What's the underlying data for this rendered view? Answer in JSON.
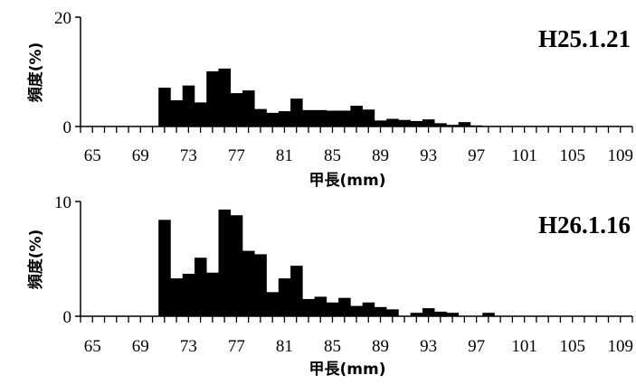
{
  "chart_data": [
    {
      "type": "bar",
      "title": "H25.1.21",
      "xlabel": "甲長(mm)",
      "ylabel": "頻度(%)",
      "xlim": [
        64,
        110
      ],
      "ylim": [
        0,
        20
      ],
      "yticks": [
        0,
        20
      ],
      "xticks": [
        65,
        69,
        73,
        77,
        81,
        85,
        89,
        93,
        97,
        101,
        105,
        109
      ],
      "grid": false,
      "x": [
        71,
        72,
        73,
        74,
        75,
        76,
        77,
        78,
        79,
        80,
        81,
        82,
        83,
        84,
        85,
        86,
        87,
        88,
        89,
        90,
        91,
        92,
        93,
        94,
        95,
        96,
        97,
        98,
        99,
        100,
        101,
        102,
        103,
        104,
        105,
        106,
        107,
        108,
        109
      ],
      "values": [
        7.1,
        4.8,
        7.5,
        4.4,
        10.1,
        10.6,
        6.1,
        6.6,
        3.2,
        2.5,
        2.8,
        5.1,
        3.0,
        3.0,
        2.9,
        2.9,
        3.8,
        3.1,
        1.1,
        1.4,
        1.2,
        1.0,
        1.3,
        0.6,
        0.3,
        0.8,
        0.2,
        0.1,
        0.1,
        0.1,
        0.1,
        0.1,
        0.1,
        0.1,
        0.1,
        0.1,
        0.05,
        0.1,
        0.05
      ]
    },
    {
      "type": "bar",
      "title": "H26.1.16",
      "xlabel": "甲長(mm)",
      "ylabel": "頻度(%)",
      "xlim": [
        64,
        110
      ],
      "ylim": [
        0,
        10
      ],
      "yticks": [
        0,
        10
      ],
      "xticks": [
        65,
        69,
        73,
        77,
        81,
        85,
        89,
        93,
        97,
        101,
        105,
        109
      ],
      "grid": false,
      "x": [
        71,
        72,
        73,
        74,
        75,
        76,
        77,
        78,
        79,
        80,
        81,
        82,
        83,
        84,
        85,
        86,
        87,
        88,
        89,
        90,
        91,
        92,
        93,
        94,
        95,
        96,
        97,
        98
      ],
      "values": [
        8.4,
        3.3,
        3.7,
        5.1,
        3.8,
        9.3,
        8.8,
        5.7,
        5.4,
        2.1,
        3.3,
        4.4,
        1.5,
        1.7,
        1.2,
        1.6,
        0.9,
        1.2,
        0.8,
        0.6,
        0,
        0.3,
        0.7,
        0.4,
        0.3,
        0,
        0,
        0.3
      ]
    }
  ]
}
